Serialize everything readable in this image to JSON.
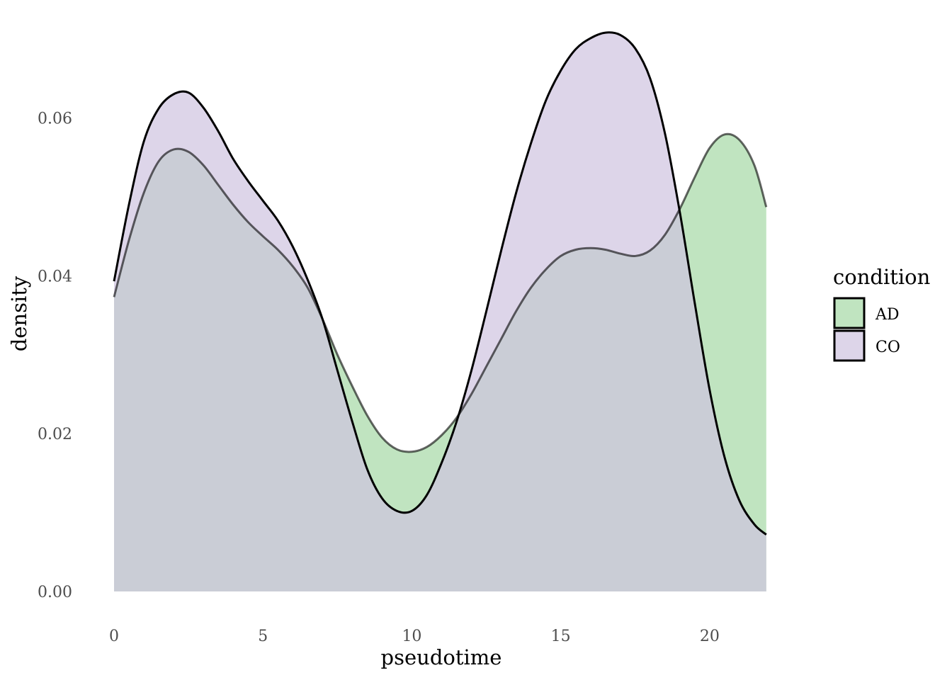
{
  "chart_data": {
    "type": "area",
    "xlabel": "pseudotime",
    "ylabel": "density",
    "xlim": [
      0,
      22
    ],
    "ylim": [
      0,
      0.07
    ],
    "x_ticks": [
      0,
      5,
      10,
      15,
      20
    ],
    "y_ticks": [
      0.0,
      0.02,
      0.04,
      0.06
    ],
    "x_tick_labels": [
      "0",
      "5",
      "10",
      "15",
      "20"
    ],
    "y_tick_labels": [
      "0.00",
      "0.02",
      "0.04",
      "0.06"
    ],
    "grid": false,
    "legend": {
      "title": "condition",
      "placement": "right"
    },
    "series": [
      {
        "name": "AD",
        "color": "#a5d8a5",
        "points": [
          [
            0,
            0.0373
          ],
          [
            0.5,
            0.0445
          ],
          [
            1,
            0.0505
          ],
          [
            1.5,
            0.0545
          ],
          [
            2,
            0.056
          ],
          [
            2.5,
            0.0557
          ],
          [
            3,
            0.054
          ],
          [
            3.5,
            0.0515
          ],
          [
            4,
            0.049
          ],
          [
            4.5,
            0.0468
          ],
          [
            5,
            0.045
          ],
          [
            5.5,
            0.0433
          ],
          [
            6,
            0.0412
          ],
          [
            6.5,
            0.0385
          ],
          [
            7,
            0.0345
          ],
          [
            7.5,
            0.03
          ],
          [
            8,
            0.026
          ],
          [
            8.5,
            0.0223
          ],
          [
            9,
            0.0195
          ],
          [
            9.5,
            0.018
          ],
          [
            10,
            0.0177
          ],
          [
            10.5,
            0.0183
          ],
          [
            11,
            0.0198
          ],
          [
            11.5,
            0.022
          ],
          [
            12,
            0.025
          ],
          [
            12.5,
            0.0285
          ],
          [
            13,
            0.032
          ],
          [
            13.5,
            0.0355
          ],
          [
            14,
            0.0385
          ],
          [
            14.5,
            0.0408
          ],
          [
            15,
            0.0425
          ],
          [
            15.5,
            0.0433
          ],
          [
            16,
            0.0435
          ],
          [
            16.5,
            0.0433
          ],
          [
            17,
            0.0428
          ],
          [
            17.5,
            0.0425
          ],
          [
            18,
            0.0432
          ],
          [
            18.5,
            0.0452
          ],
          [
            19,
            0.0485
          ],
          [
            19.5,
            0.0525
          ],
          [
            20,
            0.0562
          ],
          [
            20.5,
            0.0579
          ],
          [
            21,
            0.0572
          ],
          [
            21.5,
            0.054
          ],
          [
            21.9,
            0.0487
          ]
        ]
      },
      {
        "name": "CO",
        "color": "#cfc3e0",
        "points": [
          [
            0,
            0.0393
          ],
          [
            0.5,
            0.049
          ],
          [
            1,
            0.057
          ],
          [
            1.5,
            0.0612
          ],
          [
            2,
            0.063
          ],
          [
            2.5,
            0.0632
          ],
          [
            3,
            0.0613
          ],
          [
            3.5,
            0.0583
          ],
          [
            4,
            0.0548
          ],
          [
            4.5,
            0.052
          ],
          [
            5,
            0.0495
          ],
          [
            5.5,
            0.047
          ],
          [
            6,
            0.0437
          ],
          [
            6.5,
            0.0395
          ],
          [
            7,
            0.0345
          ],
          [
            7.5,
            0.028
          ],
          [
            8,
            0.0215
          ],
          [
            8.5,
            0.0155
          ],
          [
            9,
            0.0118
          ],
          [
            9.5,
            0.0102
          ],
          [
            10,
            0.0102
          ],
          [
            10.5,
            0.0122
          ],
          [
            11,
            0.0163
          ],
          [
            11.5,
            0.0215
          ],
          [
            12,
            0.028
          ],
          [
            12.5,
            0.0355
          ],
          [
            13,
            0.0432
          ],
          [
            13.5,
            0.0505
          ],
          [
            14,
            0.0568
          ],
          [
            14.5,
            0.0622
          ],
          [
            15,
            0.066
          ],
          [
            15.5,
            0.0687
          ],
          [
            16,
            0.0701
          ],
          [
            16.5,
            0.0708
          ],
          [
            17,
            0.0705
          ],
          [
            17.5,
            0.0688
          ],
          [
            18,
            0.065
          ],
          [
            18.5,
            0.058
          ],
          [
            19,
            0.048
          ],
          [
            19.5,
            0.0365
          ],
          [
            20,
            0.0255
          ],
          [
            20.5,
            0.017
          ],
          [
            21,
            0.0115
          ],
          [
            21.5,
            0.0085
          ],
          [
            21.9,
            0.0072
          ]
        ]
      }
    ]
  }
}
